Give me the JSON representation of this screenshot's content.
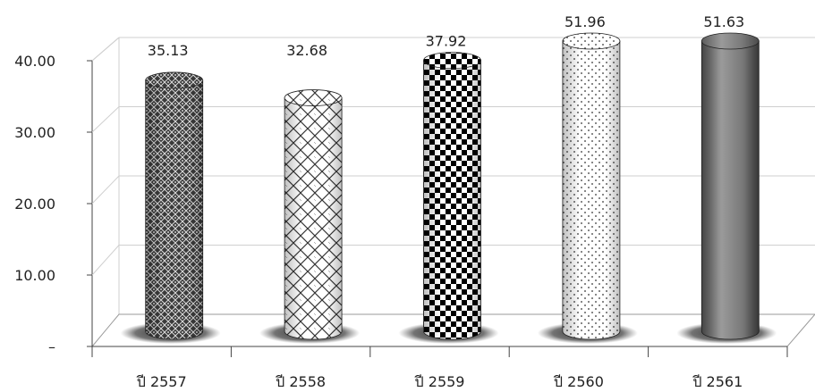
{
  "chart_data": {
    "type": "bar",
    "style": "3d-cylinder",
    "categories": [
      "ปี 2557",
      "ปี 2558",
      "ปี 2559",
      "ปี 2560",
      "ปี 2561"
    ],
    "values": [
      35.13,
      32.68,
      37.92,
      51.96,
      51.63
    ],
    "data_labels": [
      "35.13",
      "32.68",
      "37.92",
      "51.96",
      "51.63"
    ],
    "y_tick_labels": [
      "–",
      "10.00",
      "20.00",
      "30.00",
      "40.00"
    ],
    "y_ticks": [
      0,
      10,
      20,
      30,
      40
    ],
    "ylim": [
      0,
      40
    ],
    "grid": true,
    "legend": "none",
    "bar_patterns": [
      "diamond-lattice",
      "weave",
      "checkerboard",
      "dots",
      "solid-gray"
    ],
    "colors": {
      "bar_dark": "#222222",
      "bar_gray": "#7a7a7a",
      "grid": "#cfcfcf",
      "shadow": "#555555"
    }
  }
}
